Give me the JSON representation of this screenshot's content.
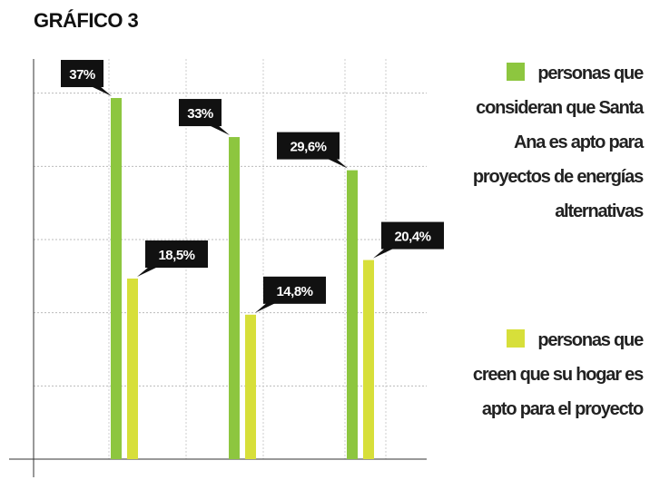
{
  "chart_data": {
    "type": "bar",
    "title": "GRÁFICO 3",
    "categories": [
      null,
      null,
      null
    ],
    "series": [
      {
        "name": "personas que consideran que Santa Ana es apto para proyectos de energías alternativas",
        "color": "#8dc63f",
        "values": [
          37,
          33,
          29.6
        ],
        "value_labels": [
          "37%",
          "33%",
          "29,6%"
        ]
      },
      {
        "name": "personas que creen que su hogar es apto para el proyecto",
        "color": "#d7df3a",
        "values": [
          18.5,
          14.8,
          20.4
        ],
        "value_labels": [
          "18,5%",
          "14,8%",
          "20,4%"
        ]
      }
    ],
    "ylim": [
      0,
      41
    ],
    "yticks": [
      0,
      7.5,
      15,
      22.5,
      30,
      37.5
    ],
    "grid": true,
    "legend": "right"
  }
}
